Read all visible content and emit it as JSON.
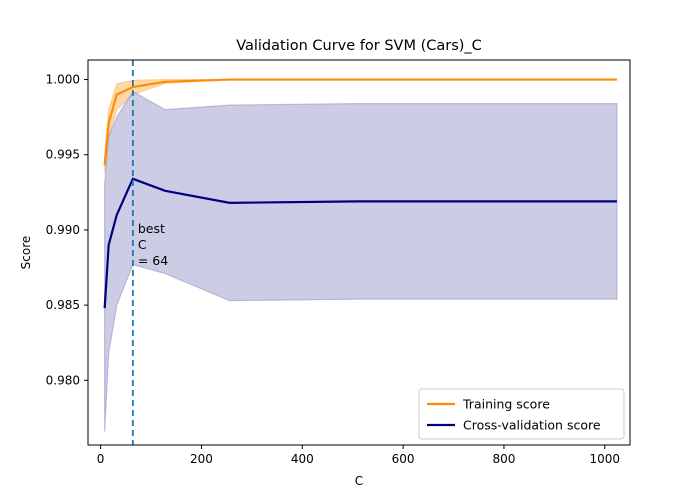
{
  "chart_data": {
    "type": "line",
    "title": "Validation Curve for SVM (Cars)_C",
    "xlabel": "C",
    "ylabel": "Score",
    "xlim": [
      -25,
      1050
    ],
    "ylim": [
      0.9757,
      1.0013
    ],
    "xticks": [
      0,
      200,
      400,
      600,
      800,
      1000
    ],
    "yticks": [
      0.98,
      0.985,
      0.99,
      0.995,
      1.0
    ],
    "ytick_labels": [
      "0.980",
      "0.985",
      "0.990",
      "0.995",
      "1.000"
    ],
    "grid": false,
    "legend_position": "lower-right",
    "x": [
      8,
      16,
      32,
      64,
      128,
      256,
      512,
      1024
    ],
    "series": [
      {
        "name": "Training score",
        "color": "#ff8c00",
        "values": [
          0.9943,
          0.9971,
          0.999,
          0.9995,
          0.99985,
          1.0,
          1.0,
          1.0
        ],
        "lower": [
          0.9938,
          0.9962,
          0.998,
          0.999,
          0.99975,
          1.0,
          1.0,
          1.0
        ],
        "upper": [
          0.9948,
          0.998,
          0.9997,
          0.99995,
          1.0,
          1.0,
          1.0,
          1.0
        ],
        "band_color": "#ffb866"
      },
      {
        "name": "Cross-validation score",
        "color": "#000080",
        "values": [
          0.9848,
          0.989,
          0.991,
          0.9934,
          0.9926,
          0.9918,
          0.9919,
          0.9919
        ],
        "lower": [
          0.9766,
          0.9818,
          0.985,
          0.9877,
          0.9871,
          0.9853,
          0.9854,
          0.9854
        ],
        "upper": [
          0.993,
          0.9962,
          0.9975,
          0.9992,
          0.998,
          0.9983,
          0.9984,
          0.9984
        ],
        "band_color": "#9999cc"
      }
    ],
    "vline": {
      "x": 64,
      "color": "#1f77b4",
      "style": "dashed"
    },
    "annotation": {
      "lines": [
        "best",
        "C",
        "= 64"
      ]
    }
  }
}
